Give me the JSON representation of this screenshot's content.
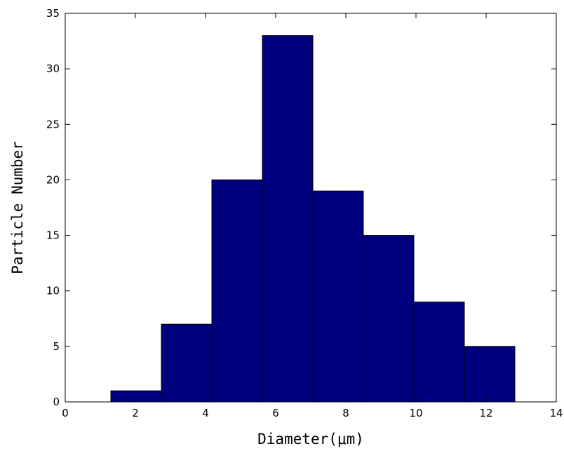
{
  "chart_data": {
    "type": "bar",
    "xlabel": "Diameter(μm)",
    "ylabel": "Particle Number",
    "xlim": [
      0,
      14
    ],
    "ylim": [
      0,
      35
    ],
    "xticks": [
      "0",
      "2",
      "4",
      "6",
      "8",
      "10",
      "12",
      "14"
    ],
    "yticks": [
      "0",
      "5",
      "10",
      "15",
      "20",
      "25",
      "30",
      "35"
    ],
    "bins": [
      {
        "start": 1.3,
        "end": 2.74,
        "value": 1
      },
      {
        "start": 2.74,
        "end": 4.18,
        "value": 7
      },
      {
        "start": 4.18,
        "end": 5.62,
        "value": 20
      },
      {
        "start": 5.62,
        "end": 7.06,
        "value": 33
      },
      {
        "start": 7.06,
        "end": 8.5,
        "value": 19
      },
      {
        "start": 8.5,
        "end": 9.94,
        "value": 15
      },
      {
        "start": 9.94,
        "end": 11.38,
        "value": 9
      },
      {
        "start": 11.38,
        "end": 12.82,
        "value": 5
      }
    ],
    "bar_color": "#00007f",
    "grid": false,
    "legend": "none"
  }
}
